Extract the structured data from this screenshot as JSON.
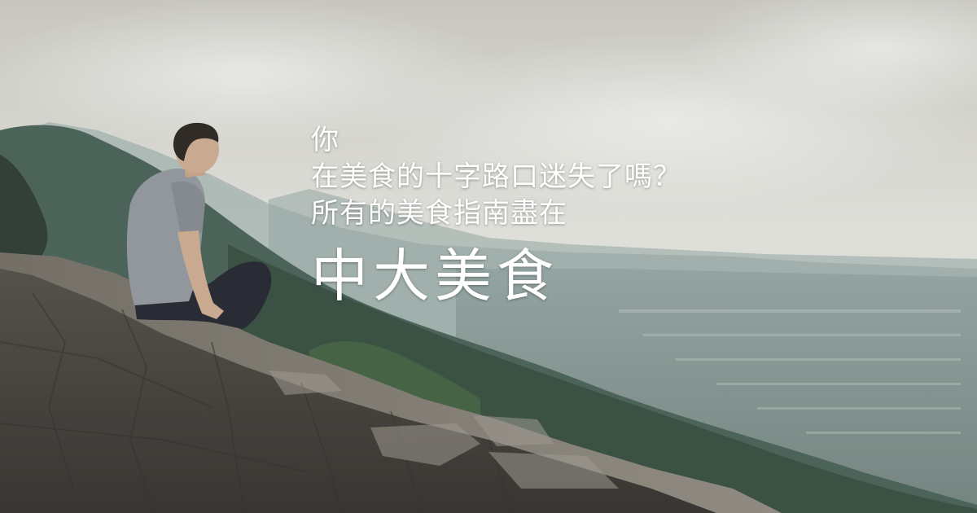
{
  "headline": {
    "line1": "你",
    "line2": "在美食的十字路口迷失了嗎？",
    "line3": "所有的美食指南盡在",
    "brand": "中大美食"
  },
  "colors": {
    "text": "#ffffff",
    "sky": "#d8d8d2",
    "mountain": "#5d7272",
    "forest": "#2f4a3c",
    "wall": "#4f4a42"
  }
}
